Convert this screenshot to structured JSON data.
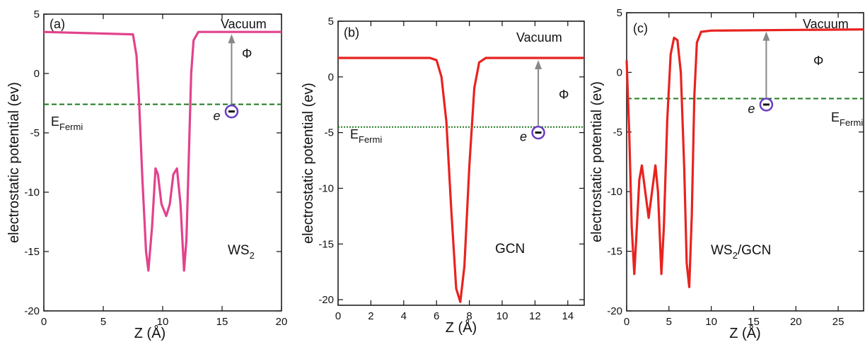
{
  "chart_data": [
    {
      "type": "line",
      "panel_label": "(a)",
      "ylabel": "electrostatic potential (ev)",
      "xlabel": "Z (Å)",
      "xlim": [
        0,
        20
      ],
      "ylim": [
        -20,
        5
      ],
      "x_ticks": [
        "0",
        "5",
        "10",
        "15",
        "20"
      ],
      "y_ticks": [
        "5",
        "0",
        "-5",
        "-10",
        "-15",
        "-20"
      ],
      "vacuum_label": "Vacuum",
      "phi_label": "Φ",
      "fermi_label": "E",
      "fermi_sub": "Fermi",
      "electron_label": "e",
      "material_label": "WS",
      "material_sub": "2",
      "material_sub_tail": "",
      "fermi_level": -2.6,
      "line_color": "#e2428c",
      "fermi_color": "#1f7a1f",
      "series": [
        {
          "x": [
            0,
            7.5,
            7.8,
            8.0,
            8.3,
            8.6,
            8.8,
            9.1,
            9.4,
            9.6,
            9.9,
            10.3,
            10.6,
            10.9,
            11.2,
            11.5,
            11.8,
            12.0,
            12.2,
            12.4,
            12.6,
            13.0,
            20
          ],
          "y": [
            3.5,
            3.3,
            1.5,
            -2,
            -9,
            -15,
            -16.6,
            -13,
            -8,
            -8.5,
            -11,
            -12,
            -11,
            -8.5,
            -8,
            -11,
            -16.6,
            -14,
            -7,
            0,
            2.8,
            3.5,
            3.5
          ]
        }
      ],
      "electron_at": [
        15.8,
        -3.2
      ],
      "arrow_x": 15.8
    },
    {
      "type": "line",
      "panel_label": "(b)",
      "ylabel": "electrostatic potential (ev)",
      "xlabel": "Z (Å)",
      "xlim": [
        0,
        15
      ],
      "ylim": [
        -20.5,
        5
      ],
      "x_ticks": [
        "0",
        "2",
        "4",
        "6",
        "8",
        "10",
        "12",
        "14"
      ],
      "y_ticks": [
        "5",
        "0",
        "-5",
        "-10",
        "-15",
        "-20"
      ],
      "vacuum_label": "Vacuum",
      "phi_label": "Φ",
      "fermi_label": "E",
      "fermi_sub": "Fermi",
      "electron_label": "e",
      "material_label": "GCN",
      "material_sub": "",
      "material_sub_tail": "",
      "fermi_level": -4.5,
      "line_color": "#e8231f",
      "fermi_color": "#1f7a1f",
      "series": [
        {
          "x": [
            0,
            5.6,
            6.0,
            6.3,
            6.6,
            6.9,
            7.2,
            7.45,
            7.7,
            8.0,
            8.3,
            8.6,
            9.0,
            15
          ],
          "y": [
            1.7,
            1.7,
            1.5,
            0,
            -4,
            -12,
            -19,
            -20.2,
            -17,
            -8,
            -1,
            1.3,
            1.7,
            1.7
          ]
        }
      ],
      "electron_at": [
        12.2,
        -5.0
      ],
      "arrow_x": 12.2
    },
    {
      "type": "line",
      "panel_label": "(c)",
      "ylabel": "electrostatic potential (ev)",
      "xlabel": "Z (Å)",
      "xlim": [
        0,
        28
      ],
      "ylim": [
        -20,
        5
      ],
      "x_ticks": [
        "0",
        "5",
        "10",
        "15",
        "20",
        "25"
      ],
      "y_ticks": [
        "5",
        "0",
        "-5",
        "-10",
        "-15",
        "-20"
      ],
      "vacuum_label": "Vacuum",
      "phi_label": "Φ",
      "fermi_label": "E",
      "fermi_sub": "Fermi",
      "electron_label": "e",
      "material_label": "WS",
      "material_sub": "2",
      "material_sub_tail": "/GCN",
      "fermi_level": -2.2,
      "line_color": "#e8231f",
      "fermi_color": "#1f7a1f",
      "series": [
        {
          "x": [
            0,
            0.3,
            0.6,
            0.9,
            1.2,
            1.5,
            1.8,
            2.2,
            2.6,
            3.0,
            3.4,
            3.7,
            4.1,
            4.4,
            4.8,
            5.2,
            5.6,
            6.0,
            6.4,
            6.8,
            7.1,
            7.4,
            7.7,
            8.0,
            8.3,
            8.8,
            10,
            28
          ],
          "y": [
            1.0,
            -5,
            -13,
            -16.9,
            -13,
            -9,
            -7.8,
            -10,
            -12.2,
            -10,
            -7.8,
            -10,
            -16.9,
            -13,
            -4,
            1.5,
            2.9,
            2.7,
            0,
            -8,
            -16,
            -18,
            -12,
            -2,
            2.5,
            3.4,
            3.5,
            3.6
          ]
        }
      ],
      "electron_at": [
        16.5,
        -2.7
      ],
      "arrow_x": 16.5
    }
  ]
}
